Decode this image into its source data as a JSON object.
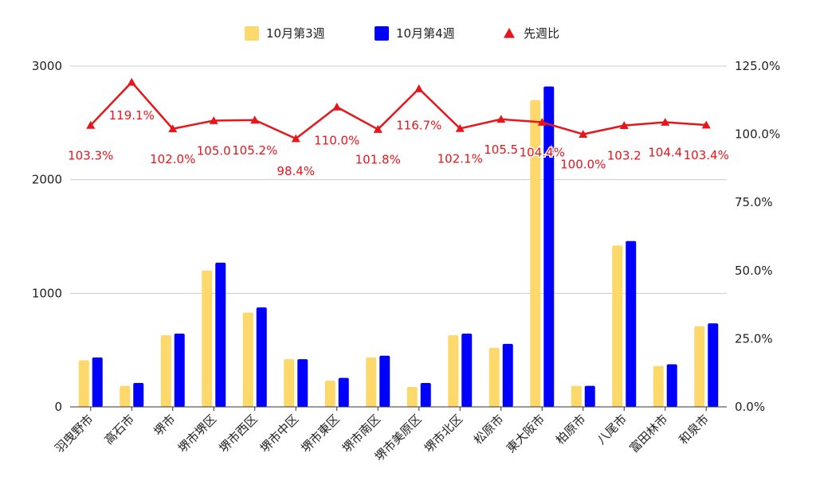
{
  "chart_data": {
    "type": "bar",
    "title": "",
    "xlabel": "",
    "ylabel": "",
    "categories": [
      "羽曳野市",
      "高石市",
      "堺市",
      "堺市堺区",
      "堺市西区",
      "堺市中区",
      "堺市東区",
      "堺市南区",
      "堺市美原区",
      "堺市北区",
      "松原市",
      "東大阪市",
      "柏原市",
      "八尾市",
      "富田林市",
      "和泉市"
    ],
    "series": [
      {
        "name": "10月第3週",
        "type": "bar",
        "axis": "left",
        "color": "#fdd86b",
        "values": [
          410,
          185,
          630,
          1200,
          830,
          420,
          230,
          435,
          175,
          630,
          520,
          2700,
          185,
          1420,
          360,
          710
        ]
      },
      {
        "name": "10月第4週",
        "type": "bar",
        "axis": "left",
        "color": "#0000ff",
        "values": [
          435,
          210,
          645,
          1270,
          875,
          420,
          255,
          450,
          210,
          645,
          555,
          2820,
          185,
          1460,
          375,
          735
        ]
      },
      {
        "name": "先週比",
        "type": "line",
        "axis": "right",
        "color": "#e8151b",
        "marker": "triangle",
        "values": [
          103.3,
          119.1,
          102.0,
          105.0,
          105.2,
          98.4,
          110.0,
          101.8,
          116.7,
          102.1,
          105.5,
          104.4,
          100.0,
          103.2,
          104.4,
          103.4
        ],
        "labels": [
          "103.3%",
          "119.1%",
          "102.0%",
          "105.0",
          "105.2%",
          "98.4%",
          "110.0%",
          "101.8%",
          "116.7%",
          "102.1%",
          "105.5",
          "104.4%",
          "100.0%",
          "103.2",
          "104.4",
          "103.4%"
        ]
      }
    ],
    "y_left": {
      "min": 0,
      "max": 3000,
      "ticks": [
        0,
        1000,
        2000,
        3000
      ],
      "tick_labels": [
        "0",
        "1000",
        "2000",
        "3000"
      ]
    },
    "y_right": {
      "min": 0,
      "max": 125,
      "ticks": [
        0,
        25,
        50,
        75,
        100,
        125
      ],
      "tick_labels": [
        "0.0%",
        "25.0%",
        "50.0%",
        "75.0%",
        "100.0%",
        "125.0%"
      ]
    },
    "grid": true,
    "legend": {
      "position": "top",
      "items": [
        "10月第3週",
        "10月第4週",
        "先週比"
      ]
    }
  }
}
